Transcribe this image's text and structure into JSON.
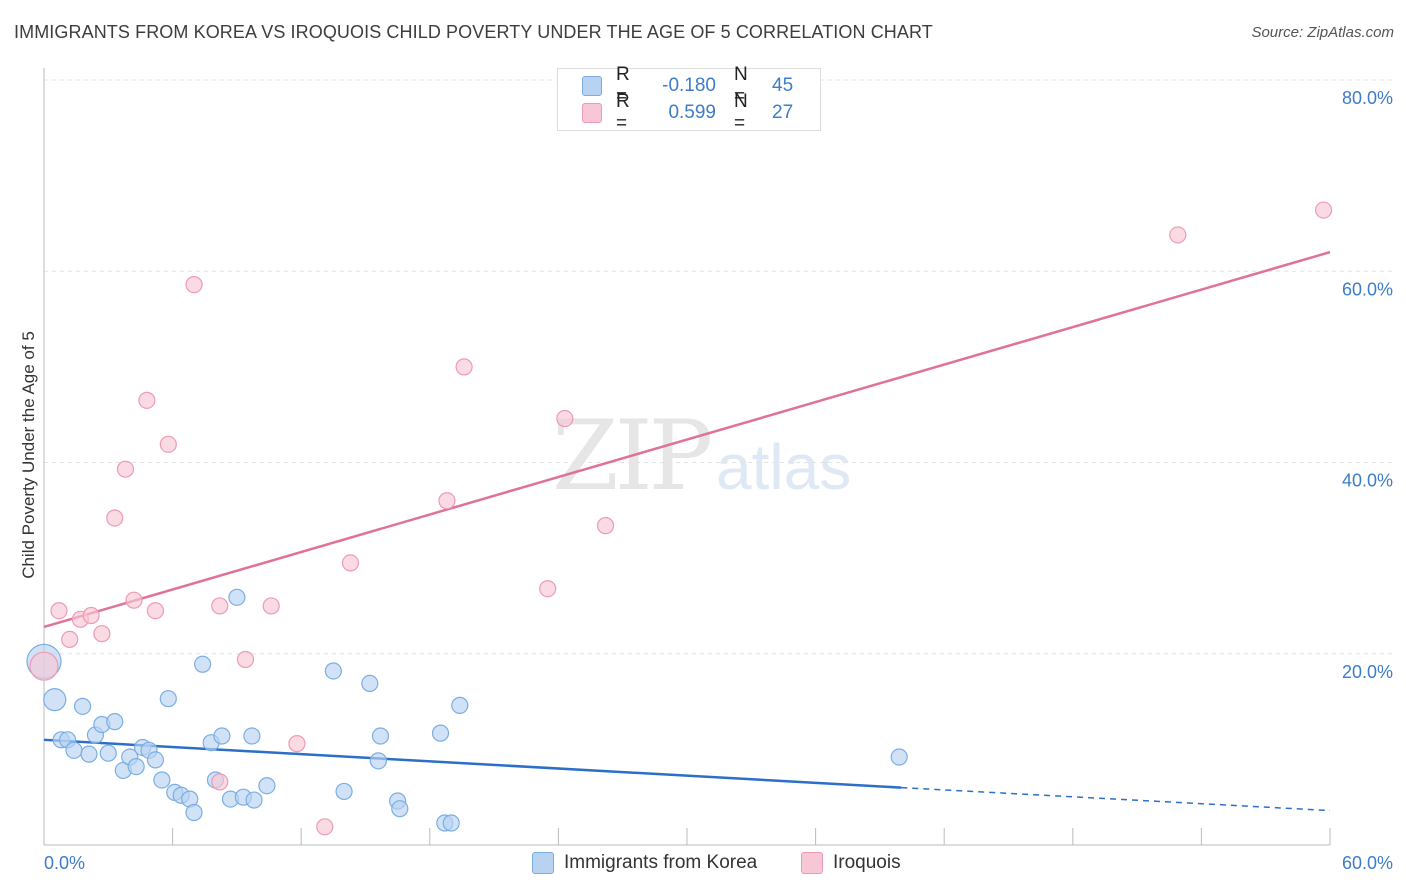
{
  "header": {
    "title": "IMMIGRANTS FROM KOREA VS IROQUOIS CHILD POVERTY UNDER THE AGE OF 5 CORRELATION CHART",
    "source": "Source: ZipAtlas.com"
  },
  "watermark": {
    "zip": "ZIP",
    "atlas": "atlas"
  },
  "legend_top": {
    "rows": [
      {
        "r_label": "R =",
        "r_value": "-0.180",
        "n_label": "N =",
        "n_value": "45"
      },
      {
        "r_label": "R =",
        "r_value": "0.599",
        "n_label": "N =",
        "n_value": "27"
      }
    ]
  },
  "legend_bottom": {
    "items": [
      {
        "label": "Immigrants from Korea"
      },
      {
        "label": "Iroquois"
      }
    ]
  },
  "colors": {
    "blue_fill": "#b8d3f2",
    "blue_stroke": "#7aaee3",
    "blue_line": "#2b6fc9",
    "pink_fill": "#f8c7d6",
    "pink_stroke": "#ee9ab5",
    "pink_line": "#e07199"
  },
  "chart_data": {
    "type": "scatter",
    "title": "IMMIGRANTS FROM KOREA VS IROQUOIS CHILD POVERTY UNDER THE AGE OF 5 CORRELATION CHART",
    "xlabel": "",
    "ylabel": "Child Poverty Under the Age of 5",
    "xlim": [
      0,
      60
    ],
    "ylim": [
      0,
      80
    ],
    "x_ticks": [
      "0.0%",
      "60.0%"
    ],
    "y_ticks": [
      {
        "value": 20,
        "label": "20.0%"
      },
      {
        "value": 40,
        "label": "40.0%"
      },
      {
        "value": 60,
        "label": "60.0%"
      },
      {
        "value": 80,
        "label": "80.0%"
      }
    ],
    "series": [
      {
        "name": "Immigrants from Korea",
        "color": "blue",
        "points": [
          [
            0.0,
            19.2
          ],
          [
            0.5,
            15.2
          ],
          [
            0.8,
            11.0
          ],
          [
            1.1,
            11.0
          ],
          [
            1.4,
            9.9
          ],
          [
            1.8,
            14.5
          ],
          [
            2.1,
            9.5
          ],
          [
            2.4,
            11.5
          ],
          [
            2.7,
            12.6
          ],
          [
            3.0,
            9.6
          ],
          [
            3.3,
            12.9
          ],
          [
            3.7,
            7.8
          ],
          [
            4.0,
            9.2
          ],
          [
            4.3,
            8.2
          ],
          [
            4.6,
            10.2
          ],
          [
            4.9,
            9.9
          ],
          [
            5.2,
            8.9
          ],
          [
            5.5,
            6.8
          ],
          [
            5.8,
            15.3
          ],
          [
            6.1,
            5.5
          ],
          [
            6.4,
            5.2
          ],
          [
            6.8,
            4.8
          ],
          [
            7.0,
            3.4
          ],
          [
            7.4,
            18.9
          ],
          [
            7.8,
            10.7
          ],
          [
            8.0,
            6.8
          ],
          [
            8.3,
            11.4
          ],
          [
            8.7,
            4.8
          ],
          [
            9.0,
            25.9
          ],
          [
            9.3,
            5.0
          ],
          [
            9.7,
            11.4
          ],
          [
            9.8,
            4.7
          ],
          [
            10.4,
            6.2
          ],
          [
            13.5,
            18.2
          ],
          [
            14.0,
            5.6
          ],
          [
            15.2,
            16.9
          ],
          [
            15.6,
            8.8
          ],
          [
            15.7,
            11.4
          ],
          [
            16.5,
            4.6
          ],
          [
            16.6,
            3.8
          ],
          [
            18.5,
            11.7
          ],
          [
            18.7,
            2.3
          ],
          [
            19.0,
            2.3
          ],
          [
            19.4,
            14.6
          ],
          [
            39.9,
            9.2
          ]
        ],
        "trend": {
          "x_start": 0,
          "y_start": 11.0,
          "x_solid_end": 40,
          "y_solid_end": 6.0,
          "x_end": 60,
          "y_end": 3.6
        }
      },
      {
        "name": "Iroquois",
        "color": "pink",
        "points": [
          [
            0.0,
            18.7
          ],
          [
            0.7,
            24.5
          ],
          [
            1.2,
            21.5
          ],
          [
            1.7,
            23.6
          ],
          [
            2.2,
            24.0
          ],
          [
            2.7,
            22.1
          ],
          [
            3.3,
            34.2
          ],
          [
            3.8,
            39.3
          ],
          [
            4.2,
            25.6
          ],
          [
            4.8,
            46.5
          ],
          [
            5.2,
            24.5
          ],
          [
            5.8,
            41.9
          ],
          [
            7.0,
            58.6
          ],
          [
            8.2,
            25.0
          ],
          [
            9.4,
            19.4
          ],
          [
            10.6,
            25.0
          ],
          [
            11.8,
            10.6
          ],
          [
            13.1,
            1.9
          ],
          [
            14.3,
            29.5
          ],
          [
            18.8,
            36.0
          ],
          [
            19.6,
            50.0
          ],
          [
            23.5,
            26.8
          ],
          [
            24.3,
            44.6
          ],
          [
            26.2,
            33.4
          ],
          [
            52.9,
            63.8
          ],
          [
            59.7,
            66.4
          ],
          [
            8.2,
            6.6
          ]
        ],
        "trend": {
          "x_start": 0,
          "y_start": 22.8,
          "x_end": 60,
          "y_end": 62.0
        }
      }
    ]
  }
}
